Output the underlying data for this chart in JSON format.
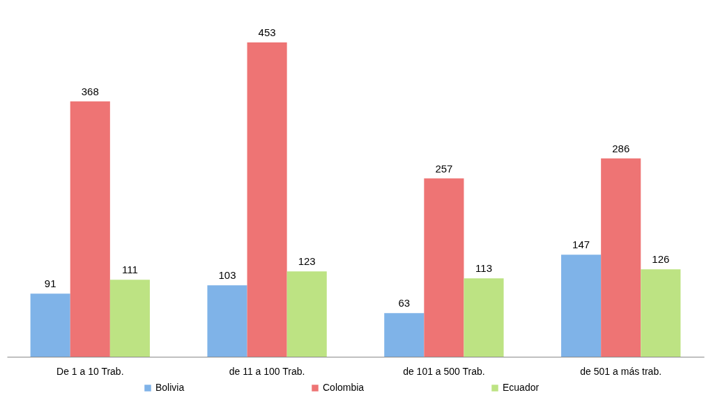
{
  "chart_data": {
    "type": "bar",
    "categories": [
      "De 1 a 10 Trab.",
      "de 11 a 100 Trab.",
      "de 101 a 500 Trab.",
      "de 501 a más trab."
    ],
    "series": [
      {
        "name": "Bolivia",
        "color": "#7fb3e8",
        "values": [
          91,
          103,
          63,
          147
        ]
      },
      {
        "name": "Colombia",
        "color": "#ee7474",
        "values": [
          368,
          453,
          257,
          286
        ]
      },
      {
        "name": "Ecuador",
        "color": "#bde383",
        "values": [
          111,
          123,
          113,
          126
        ]
      }
    ],
    "data_labels": true,
    "legend": "bottom",
    "tick_labels": "x"
  }
}
